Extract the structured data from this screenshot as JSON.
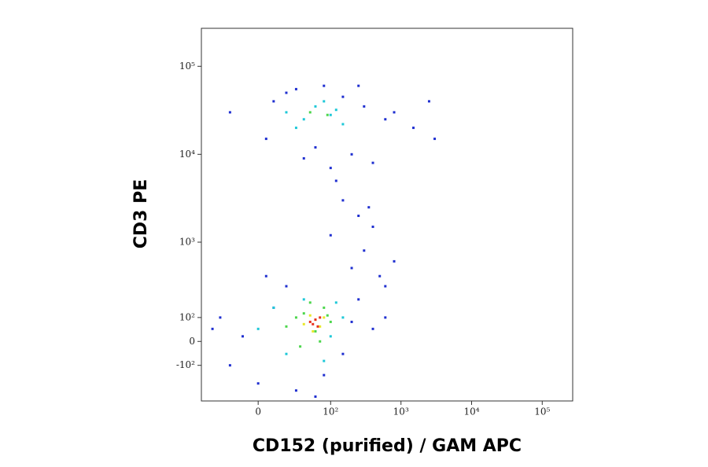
{
  "chart_data": {
    "type": "scatter",
    "xlabel": "CD152 (purified) / GAM APC",
    "ylabel": "CD3 PE",
    "xscale": "asinh",
    "yscale": "asinh",
    "xlim": [
      -59,
      270000
    ],
    "ylim": [
      -340,
      270000
    ],
    "xticks": [
      0,
      {
        "value": 100,
        "label": "10²"
      },
      {
        "value": 1000,
        "label": "10³"
      },
      {
        "value": 10000,
        "label": "10⁴"
      },
      {
        "value": 100000,
        "label": "10⁵"
      }
    ],
    "yticks": [
      {
        "value": -100,
        "label": "-10²"
      },
      0,
      {
        "value": 100,
        "label": "10²"
      },
      {
        "value": 1000,
        "label": "10³"
      },
      {
        "value": 10000,
        "label": "10⁴"
      },
      {
        "value": 100000,
        "label": "10⁵"
      }
    ],
    "series": [
      {
        "color": "#1f2fd0",
        "x": [
          10,
          30,
          80,
          150,
          300,
          600,
          1500,
          3000,
          -20,
          5,
          200,
          400,
          100,
          60,
          20,
          800,
          2500,
          40,
          120,
          250,
          150,
          250,
          400,
          300,
          200,
          500,
          100,
          350,
          800,
          600,
          -40,
          -20,
          0,
          10,
          20,
          200,
          400,
          600,
          150,
          -10,
          30,
          80,
          250,
          5,
          -30,
          60
        ],
        "values": [
          40000,
          55000,
          60000,
          45000,
          35000,
          25000,
          20000,
          15000,
          30000,
          15000,
          10000,
          8000,
          7000,
          12000,
          50000,
          30000,
          40000,
          9000,
          5000,
          60000,
          3000,
          2000,
          1500,
          800,
          500,
          400,
          1200,
          2500,
          600,
          300,
          50,
          -100,
          -200,
          150,
          300,
          80,
          50,
          100,
          -50,
          20,
          -250,
          -150,
          200,
          400,
          100,
          -300
        ]
      },
      {
        "color": "#1ec8d8",
        "x": [
          20,
          40,
          60,
          100,
          150,
          30,
          80,
          120,
          0,
          10,
          100,
          150,
          20,
          80,
          40,
          120
        ],
        "values": [
          30000,
          25000,
          35000,
          28000,
          22000,
          20000,
          40000,
          32000,
          50,
          150,
          20,
          100,
          -50,
          -80,
          200,
          180
        ]
      },
      {
        "color": "#4cd64c",
        "x": [
          20,
          30,
          40,
          60,
          80,
          100,
          35,
          70,
          90,
          50,
          50,
          90
        ],
        "values": [
          60,
          100,
          120,
          40,
          150,
          80,
          -20,
          0,
          110,
          180,
          30000,
          28000
        ]
      },
      {
        "color": "#e8e82a",
        "x": [
          40,
          50,
          60,
          70,
          80,
          55
        ],
        "values": [
          70,
          110,
          90,
          60,
          100,
          40
        ]
      },
      {
        "color": "#e8301e",
        "x": [
          50,
          60,
          70,
          55,
          65
        ],
        "values": [
          80,
          90,
          100,
          70,
          60
        ]
      }
    ]
  }
}
